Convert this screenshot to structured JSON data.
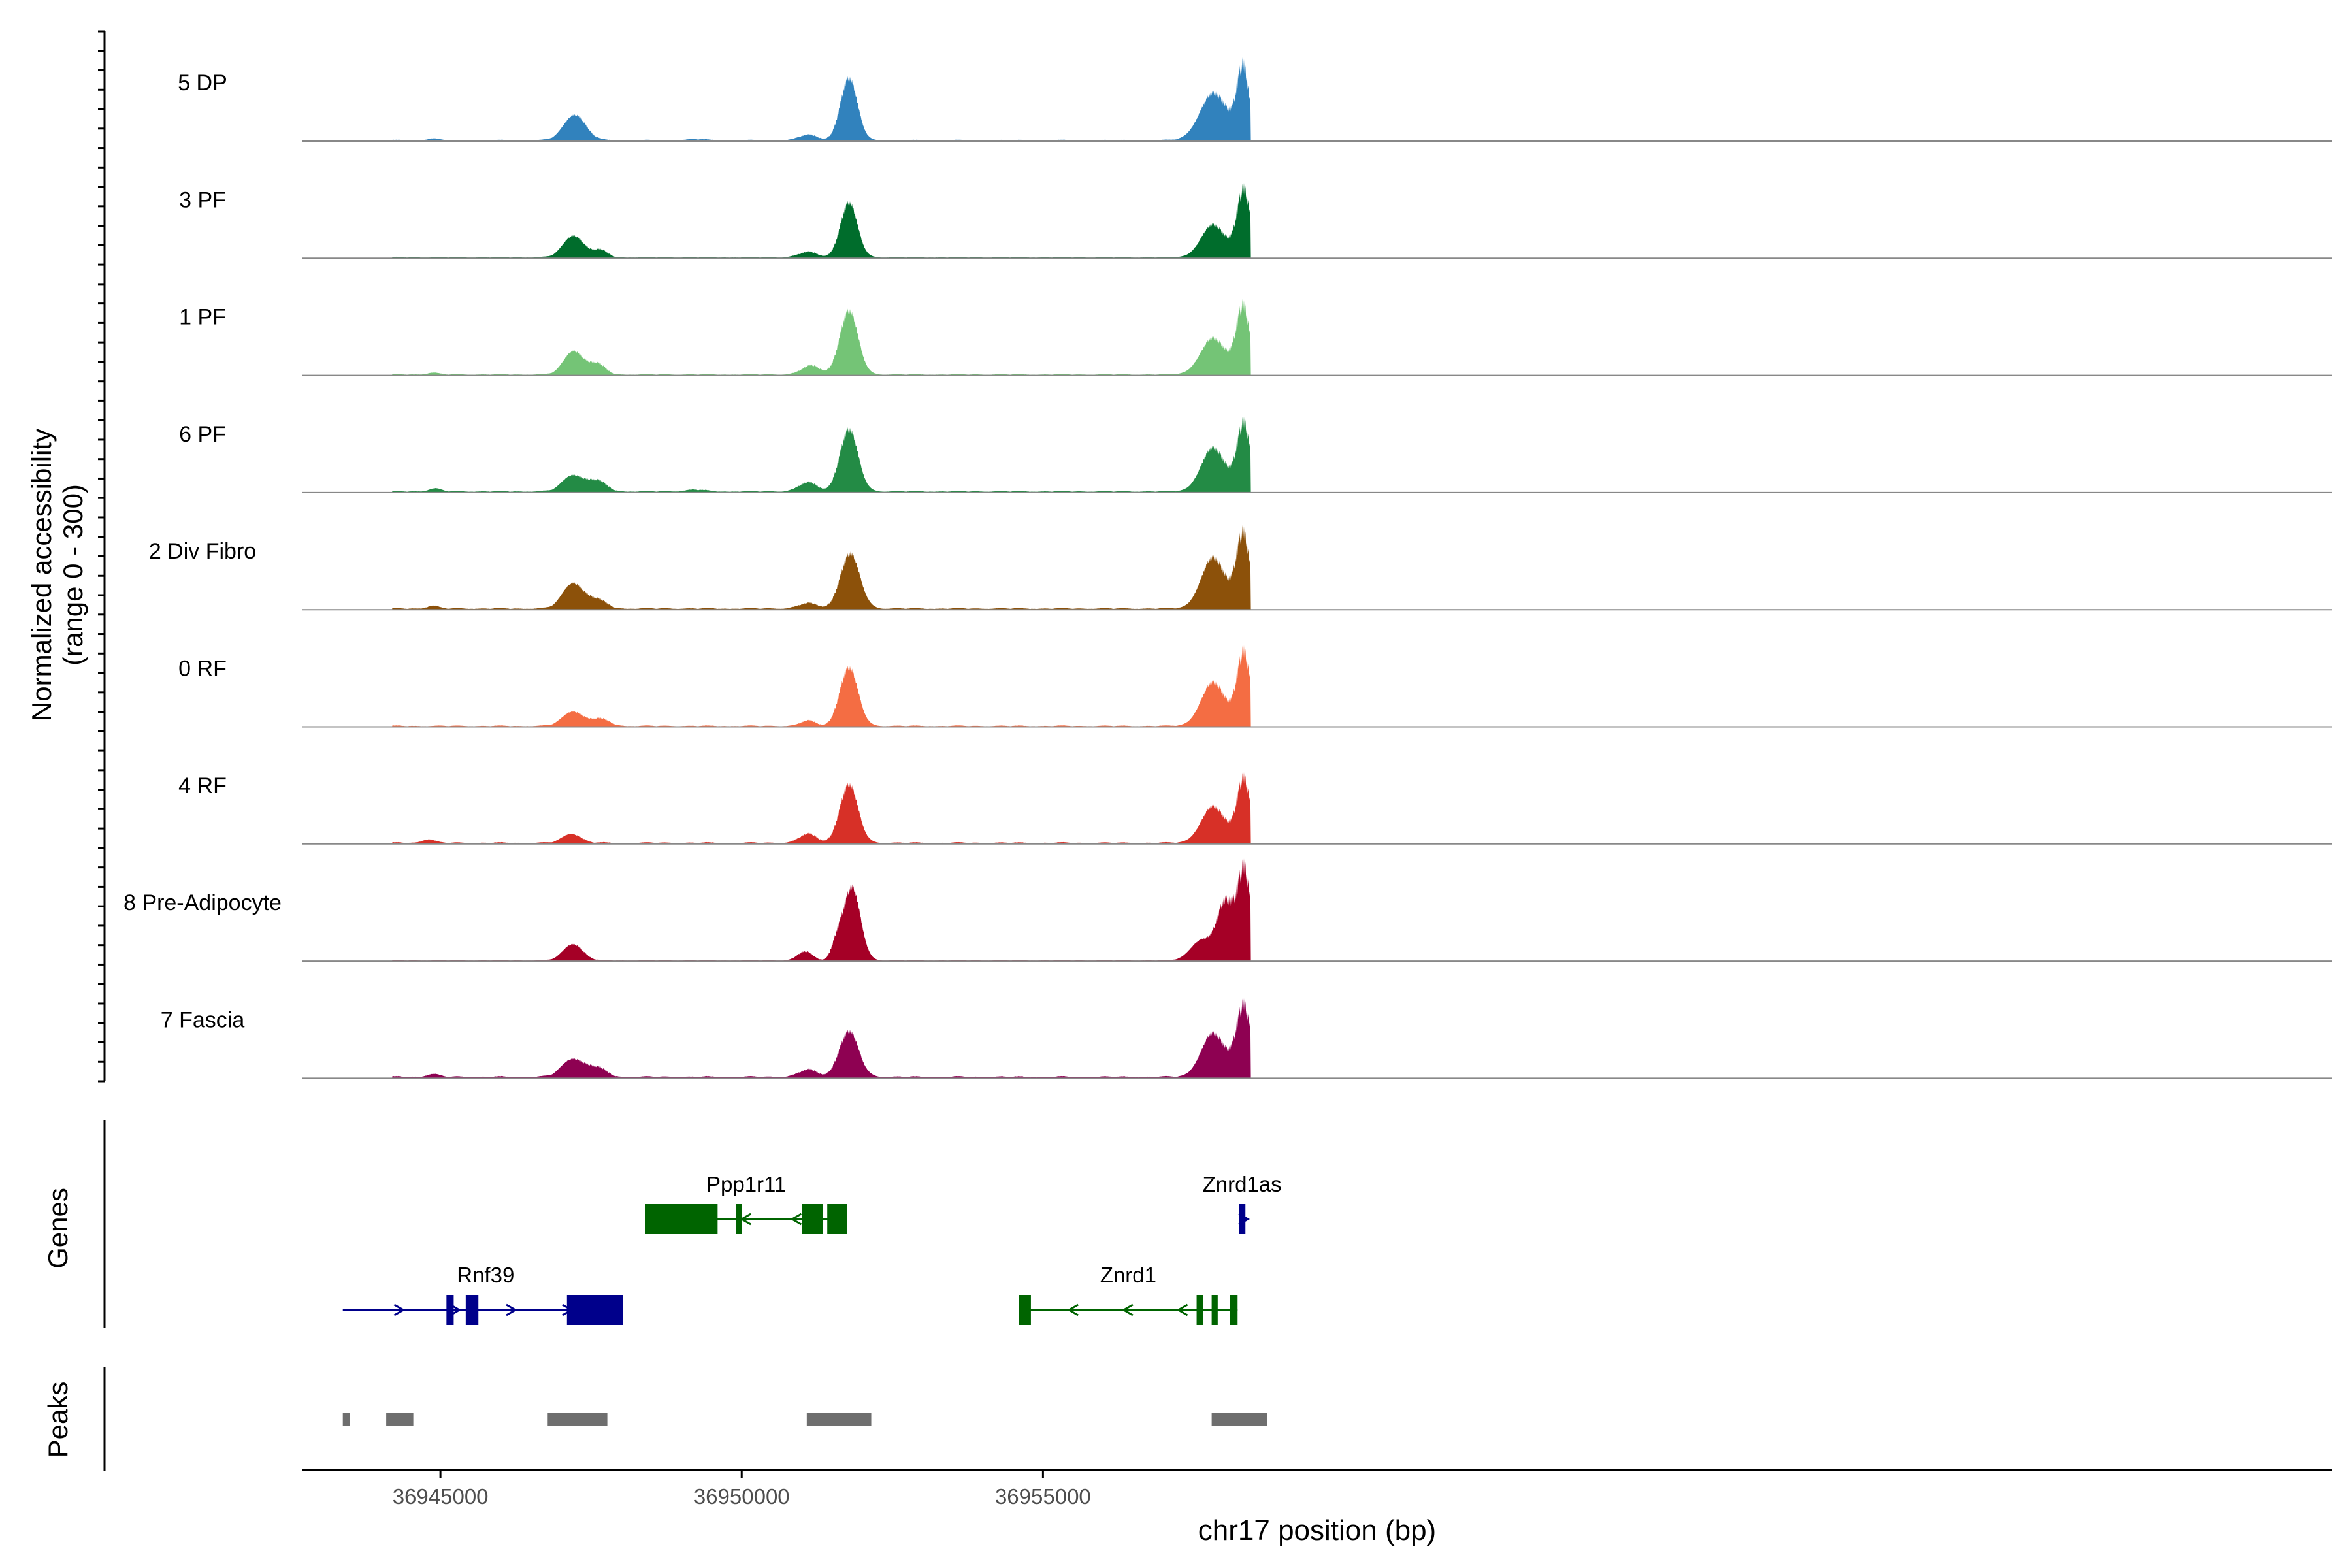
{
  "chart_data": {
    "type": "area",
    "title": "",
    "xlabel": "chr17 position (bp)",
    "ylabel_line1": "Normalized accessibility",
    "ylabel_line2": "(range 0 - 300)",
    "yrange": [
      0,
      300
    ],
    "xlim": [
      36942700,
      36976400
    ],
    "x_ticks": [
      36945000,
      36950000,
      36955000
    ],
    "x_tick_labels": [
      "36945000",
      "36950000",
      "36955000"
    ],
    "peaks_region": {
      "start": 36944200,
      "end": 36958450
    },
    "tracks": [
      {
        "name": "5 DP",
        "color": "#3182BD",
        "base": 4,
        "peaks": [
          [
            36944870,
            5,
            90
          ],
          [
            36947230,
            70,
            180
          ],
          [
            36949230,
            3,
            150
          ],
          [
            36951100,
            15,
            150
          ],
          [
            36951780,
            170,
            140
          ],
          [
            36957840,
            130,
            230
          ],
          [
            36958320,
            200,
            100
          ]
        ]
      },
      {
        "name": "3 PF",
        "color": "#006D2C",
        "base": 4,
        "peaks": [
          [
            36947210,
            60,
            170
          ],
          [
            36947650,
            20,
            120
          ],
          [
            36951100,
            15,
            150
          ],
          [
            36951780,
            150,
            140
          ],
          [
            36957830,
            90,
            200
          ],
          [
            36958330,
            190,
            110
          ]
        ]
      },
      {
        "name": "1 PF",
        "color": "#74C476",
        "base": 4,
        "peaks": [
          [
            36944870,
            5,
            90
          ],
          [
            36947210,
            65,
            160
          ],
          [
            36947600,
            30,
            130
          ],
          [
            36951150,
            25,
            150
          ],
          [
            36951780,
            175,
            150
          ],
          [
            36957830,
            100,
            210
          ],
          [
            36958320,
            190,
            110
          ]
        ]
      },
      {
        "name": "6 PF",
        "color": "#238B45",
        "base": 5,
        "peaks": [
          [
            36944900,
            8,
            100
          ],
          [
            36947200,
            45,
            170
          ],
          [
            36947600,
            30,
            150
          ],
          [
            36949230,
            5,
            150
          ],
          [
            36951100,
            25,
            150
          ],
          [
            36951780,
            170,
            150
          ],
          [
            36957830,
            120,
            200
          ],
          [
            36958330,
            190,
            110
          ]
        ]
      },
      {
        "name": "2 Div Fibro",
        "color": "#8C510A",
        "base": 5,
        "peaks": [
          [
            36944870,
            8,
            90
          ],
          [
            36947200,
            70,
            170
          ],
          [
            36947600,
            25,
            150
          ],
          [
            36951100,
            15,
            150
          ],
          [
            36951800,
            150,
            160
          ],
          [
            36957830,
            140,
            200
          ],
          [
            36958320,
            210,
            110
          ]
        ]
      },
      {
        "name": "0 RF",
        "color": "#F46D43",
        "base": 4,
        "peaks": [
          [
            36947200,
            40,
            170
          ],
          [
            36947650,
            20,
            150
          ],
          [
            36951100,
            15,
            120
          ],
          [
            36951780,
            160,
            150
          ],
          [
            36957830,
            120,
            200
          ],
          [
            36958330,
            205,
            110
          ]
        ]
      },
      {
        "name": "4 RF",
        "color": "#D73027",
        "base": 5,
        "peaks": [
          [
            36944800,
            10,
            100
          ],
          [
            36947180,
            25,
            150
          ],
          [
            36951100,
            25,
            140
          ],
          [
            36951780,
            160,
            150
          ],
          [
            36957830,
            100,
            200
          ],
          [
            36958330,
            180,
            110
          ]
        ]
      },
      {
        "name": "8 Pre-Adipocyte",
        "color": "#A50026",
        "base": 3,
        "peaks": [
          [
            36947200,
            45,
            160
          ],
          [
            36951050,
            25,
            120
          ],
          [
            36951580,
            45,
            90
          ],
          [
            36951830,
            200,
            140
          ],
          [
            36957630,
            55,
            180
          ],
          [
            36958030,
            160,
            140
          ],
          [
            36958340,
            250,
            110
          ]
        ]
      },
      {
        "name": "7 Fascia",
        "color": "#8E0152",
        "base": 6,
        "peaks": [
          [
            36944870,
            8,
            100
          ],
          [
            36947200,
            50,
            180
          ],
          [
            36947600,
            25,
            150
          ],
          [
            36951100,
            20,
            150
          ],
          [
            36951780,
            125,
            160
          ],
          [
            36957830,
            120,
            200
          ],
          [
            36958330,
            200,
            120
          ]
        ]
      }
    ],
    "gene_track_label": "Genes",
    "genes": [
      {
        "name": "Ppp1r11",
        "strand": "-",
        "color": "#006400",
        "row": 0,
        "start": 36948400,
        "end": 36951750,
        "exons": [
          [
            36948400,
            36949600
          ],
          [
            36949900,
            36950000
          ],
          [
            36951000,
            36951350
          ],
          [
            36951420,
            36951750
          ]
        ]
      },
      {
        "name": "Znrd1as",
        "strand": "+",
        "color": "#00008B",
        "row": 0,
        "start": 36958250,
        "end": 36958400,
        "exons": [
          [
            36958250,
            36958360
          ]
        ]
      },
      {
        "name": "Rnf39",
        "strand": "+",
        "color": "#00008B",
        "row": 1,
        "start": 36943380,
        "end": 36948030,
        "exons": [
          [
            36945100,
            36945220
          ],
          [
            36945420,
            36945630
          ],
          [
            36947100,
            36948030
          ]
        ]
      },
      {
        "name": "Znrd1",
        "strand": "-",
        "color": "#006400",
        "row": 1,
        "start": 36954600,
        "end": 36958230,
        "exons": [
          [
            36954600,
            36954800
          ],
          [
            36957550,
            36957660
          ],
          [
            36957800,
            36957900
          ],
          [
            36958100,
            36958230
          ]
        ]
      }
    ],
    "peak_track_label": "Peaks",
    "peaks": [
      [
        36943380,
        36943500
      ],
      [
        36944100,
        36944550
      ],
      [
        36946780,
        36947770
      ],
      [
        36951080,
        36952150
      ],
      [
        36957800,
        36958720
      ]
    ]
  }
}
